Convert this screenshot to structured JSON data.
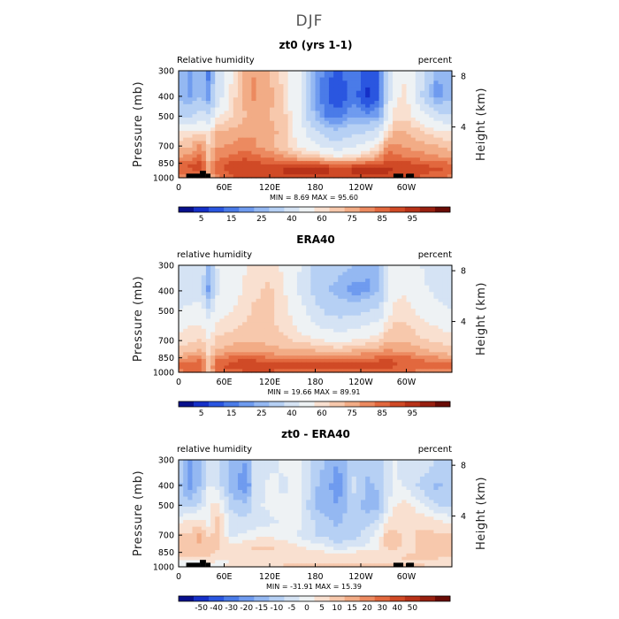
{
  "figure": {
    "title": "DJF"
  },
  "palettes": {
    "rh": [
      "#08108c",
      "#1530c8",
      "#2a56e0",
      "#4a7be8",
      "#6f9bef",
      "#94b8f2",
      "#b6d0f4",
      "#d5e3f4",
      "#eef2f4",
      "#f9e0d0",
      "#f7c8ac",
      "#f2ac86",
      "#ec8a60",
      "#e2683e",
      "#d04a26",
      "#b83218",
      "#982010",
      "#6a0c06"
    ],
    "diff": [
      "#08108c",
      "#1530c8",
      "#2a56e0",
      "#4a7be8",
      "#6f9bef",
      "#94b8f2",
      "#b6d0f4",
      "#d5e3f4",
      "#eef2f4",
      "#f9e0d0",
      "#f7c8ac",
      "#f2ac86",
      "#ec8a60",
      "#e2683e",
      "#d04a26",
      "#b83218",
      "#982010",
      "#6a0c06"
    ]
  },
  "chart_data": [
    {
      "type": "heatmap",
      "title": "zt0 (yrs 1-1)",
      "left_label": "Relative humidity",
      "right_label": "percent",
      "ylabel": "Pressure (mb)",
      "ylabel_right": "Height (km)",
      "x_ticks": [
        "0",
        "60E",
        "120E",
        "180",
        "120W",
        "60W"
      ],
      "x_tick_values": [
        0,
        60,
        120,
        180,
        240,
        300
      ],
      "xlim": [
        0,
        360
      ],
      "y_ticks": [
        "300",
        "400",
        "500",
        "700",
        "850",
        "1000"
      ],
      "y_tick_values": [
        300,
        400,
        500,
        700,
        850,
        1000
      ],
      "ylim": [
        300,
        1000
      ],
      "height_ticks": [
        "8",
        "4"
      ],
      "height_tick_values": [
        8,
        4
      ],
      "min_max": "MIN =    8.69   MAX =  95.60",
      "colorbar_labels": [
        "5",
        "15",
        "25",
        "40",
        "60",
        "75",
        "85",
        "95"
      ],
      "levels": [
        5,
        10,
        15,
        20,
        25,
        30,
        40,
        50,
        60,
        65,
        70,
        75,
        80,
        85,
        90,
        95
      ],
      "palette": "rh",
      "terrain": [
        [
          10,
          28,
          955
        ],
        [
          28,
          36,
          925
        ],
        [
          36,
          42,
          955
        ],
        [
          283,
          296,
          955
        ],
        [
          300,
          310,
          955
        ]
      ],
      "field": {
        "lons": [
          0,
          15,
          30,
          40,
          50,
          70,
          90,
          100,
          120,
          140,
          160,
          180,
          195,
          210,
          230,
          250,
          265,
          275,
          285,
          300,
          320,
          340,
          360
        ],
        "p": [
          300,
          400,
          500,
          600,
          700,
          800,
          850,
          900,
          950,
          1000
        ],
        "values": [
          [
            30,
            22,
            32,
            18,
            40,
            60,
            72,
            75,
            70,
            62,
            55,
            25,
            18,
            12,
            20,
            12,
            16,
            40,
            55,
            60,
            45,
            25,
            30
          ],
          [
            28,
            24,
            30,
            20,
            42,
            62,
            74,
            76,
            72,
            64,
            50,
            22,
            15,
            10,
            18,
            8,
            15,
            42,
            58,
            62,
            40,
            22,
            28
          ],
          [
            40,
            40,
            45,
            42,
            58,
            65,
            70,
            72,
            70,
            66,
            50,
            28,
            20,
            18,
            25,
            22,
            25,
            50,
            62,
            64,
            55,
            45,
            40
          ],
          [
            60,
            62,
            64,
            62,
            70,
            72,
            74,
            74,
            72,
            68,
            55,
            42,
            35,
            32,
            38,
            40,
            48,
            64,
            70,
            70,
            66,
            62,
            60
          ],
          [
            68,
            70,
            78,
            64,
            74,
            76,
            78,
            76,
            72,
            66,
            58,
            52,
            48,
            44,
            48,
            55,
            62,
            78,
            76,
            74,
            72,
            70,
            68
          ],
          [
            74,
            78,
            82,
            68,
            78,
            82,
            85,
            82,
            80,
            76,
            72,
            70,
            66,
            62,
            66,
            70,
            76,
            84,
            82,
            80,
            78,
            76,
            74
          ],
          [
            80,
            84,
            86,
            70,
            82,
            86,
            88,
            86,
            84,
            82,
            82,
            82,
            80,
            78,
            80,
            82,
            84,
            88,
            86,
            86,
            84,
            82,
            80
          ],
          [
            84,
            86,
            88,
            72,
            84,
            88,
            90,
            90,
            90,
            90,
            90,
            90,
            90,
            88,
            90,
            90,
            90,
            92,
            90,
            90,
            88,
            86,
            84
          ],
          [
            82,
            80,
            84,
            70,
            82,
            86,
            88,
            88,
            88,
            90,
            90,
            90,
            90,
            90,
            90,
            90,
            90,
            90,
            88,
            88,
            86,
            84,
            82
          ],
          [
            78,
            76,
            80,
            66,
            78,
            84,
            86,
            86,
            86,
            88,
            88,
            88,
            88,
            88,
            88,
            88,
            88,
            88,
            86,
            86,
            84,
            80,
            78
          ]
        ]
      }
    },
    {
      "type": "heatmap",
      "title": "ERA40",
      "left_label": "relative humidity",
      "right_label": "percent",
      "ylabel": "Pressure (mb)",
      "ylabel_right": "Height (km)",
      "x_ticks": [
        "0",
        "60E",
        "120E",
        "180",
        "120W",
        "60W"
      ],
      "x_tick_values": [
        0,
        60,
        120,
        180,
        240,
        300
      ],
      "xlim": [
        0,
        360
      ],
      "y_ticks": [
        "300",
        "400",
        "500",
        "700",
        "850",
        "1000"
      ],
      "y_tick_values": [
        300,
        400,
        500,
        700,
        850,
        1000
      ],
      "ylim": [
        300,
        1000
      ],
      "height_ticks": [
        "8",
        "4"
      ],
      "height_tick_values": [
        8,
        4
      ],
      "min_max": "MIN =   19.66   MAX =  89.91",
      "colorbar_labels": [
        "5",
        "15",
        "25",
        "40",
        "60",
        "75",
        "85",
        "95"
      ],
      "levels": [
        5,
        10,
        15,
        20,
        25,
        30,
        40,
        50,
        60,
        65,
        70,
        75,
        80,
        85,
        90,
        95
      ],
      "palette": "rh",
      "terrain": [],
      "field": {
        "lons": [
          0,
          15,
          30,
          40,
          50,
          70,
          90,
          100,
          120,
          140,
          160,
          180,
          195,
          210,
          230,
          250,
          265,
          275,
          285,
          300,
          320,
          340,
          360
        ],
        "p": [
          300,
          400,
          500,
          600,
          700,
          800,
          850,
          900,
          950,
          1000
        ],
        "values": [
          [
            40,
            42,
            48,
            25,
            50,
            55,
            60,
            64,
            64,
            58,
            50,
            38,
            34,
            32,
            30,
            26,
            30,
            48,
            56,
            58,
            50,
            45,
            40
          ],
          [
            44,
            46,
            45,
            22,
            48,
            56,
            62,
            64,
            66,
            60,
            48,
            36,
            30,
            28,
            22,
            24,
            32,
            50,
            58,
            60,
            52,
            48,
            44
          ],
          [
            50,
            52,
            54,
            42,
            56,
            60,
            64,
            66,
            66,
            62,
            54,
            44,
            38,
            36,
            36,
            40,
            42,
            56,
            62,
            62,
            58,
            54,
            50
          ],
          [
            58,
            60,
            62,
            55,
            62,
            64,
            66,
            68,
            66,
            64,
            58,
            52,
            48,
            46,
            48,
            52,
            56,
            64,
            66,
            66,
            62,
            60,
            58
          ],
          [
            62,
            64,
            66,
            60,
            66,
            68,
            70,
            70,
            68,
            66,
            64,
            62,
            60,
            58,
            60,
            62,
            64,
            70,
            70,
            70,
            66,
            64,
            62
          ],
          [
            68,
            70,
            72,
            62,
            72,
            74,
            76,
            76,
            74,
            72,
            72,
            72,
            70,
            70,
            72,
            74,
            76,
            78,
            76,
            76,
            72,
            70,
            68
          ],
          [
            74,
            76,
            78,
            64,
            78,
            82,
            84,
            82,
            80,
            80,
            80,
            80,
            80,
            78,
            80,
            80,
            82,
            84,
            82,
            82,
            78,
            76,
            74
          ],
          [
            80,
            82,
            84,
            66,
            82,
            86,
            88,
            88,
            88,
            88,
            88,
            86,
            86,
            86,
            86,
            86,
            88,
            88,
            86,
            84,
            82,
            80,
            80
          ],
          [
            82,
            84,
            84,
            68,
            84,
            86,
            88,
            88,
            88,
            86,
            86,
            86,
            86,
            86,
            86,
            86,
            86,
            86,
            84,
            84,
            82,
            82,
            82
          ],
          [
            78,
            80,
            80,
            66,
            80,
            82,
            84,
            84,
            84,
            82,
            82,
            82,
            82,
            82,
            82,
            82,
            82,
            82,
            80,
            80,
            78,
            78,
            78
          ]
        ]
      }
    },
    {
      "type": "heatmap",
      "title": "zt0 - ERA40",
      "left_label": "relative humidity",
      "right_label": "percent",
      "ylabel": "Pressure (mb)",
      "ylabel_right": "Height (km)",
      "x_ticks": [
        "0",
        "60E",
        "120E",
        "180",
        "120W",
        "60W"
      ],
      "x_tick_values": [
        0,
        60,
        120,
        180,
        240,
        300
      ],
      "xlim": [
        0,
        360
      ],
      "y_ticks": [
        "300",
        "400",
        "500",
        "700",
        "850",
        "1000"
      ],
      "y_tick_values": [
        300,
        400,
        500,
        700,
        850,
        1000
      ],
      "ylim": [
        300,
        1000
      ],
      "height_ticks": [
        "8",
        "4"
      ],
      "height_tick_values": [
        8,
        4
      ],
      "min_max": "MIN =  -31.91   MAX =  15.39",
      "colorbar_labels": [
        "-50",
        "-40",
        "-30",
        "-20",
        "-15",
        "-10",
        "-5",
        "0",
        "5",
        "10",
        "15",
        "20",
        "30",
        "40",
        "50"
      ],
      "levels": [
        -60,
        -50,
        -40,
        -30,
        -20,
        -15,
        -10,
        -5,
        0,
        5,
        10,
        15,
        20,
        30,
        40,
        50,
        60
      ],
      "palette": "diff",
      "terrain": [
        [
          10,
          28,
          955
        ],
        [
          28,
          36,
          925
        ],
        [
          36,
          42,
          955
        ],
        [
          283,
          296,
          955
        ],
        [
          300,
          310,
          955
        ]
      ],
      "field": {
        "lons": [
          0,
          15,
          30,
          40,
          50,
          70,
          90,
          100,
          120,
          140,
          160,
          180,
          195,
          210,
          230,
          250,
          265,
          275,
          285,
          300,
          320,
          340,
          360
        ],
        "p": [
          300,
          400,
          500,
          600,
          700,
          800,
          850,
          900,
          950,
          1000
        ],
        "values": [
          [
            -10,
            -20,
            -14,
            -6,
            -8,
            -16,
            -20,
            -8,
            -6,
            -4,
            -4,
            -12,
            -16,
            -20,
            -12,
            -14,
            -12,
            -8,
            -4,
            -8,
            -6,
            -10,
            -10
          ],
          [
            -14,
            -22,
            -14,
            -4,
            -6,
            -18,
            -26,
            -8,
            -4,
            -6,
            -2,
            -14,
            -18,
            -24,
            -8,
            -16,
            -14,
            -8,
            -4,
            -6,
            -12,
            -16,
            -14
          ],
          [
            -10,
            -12,
            -8,
            0,
            2,
            -12,
            -14,
            -6,
            -4,
            -4,
            -4,
            -16,
            -18,
            -20,
            -12,
            -18,
            -16,
            -6,
            0,
            2,
            -4,
            -10,
            -10
          ],
          [
            -2,
            2,
            2,
            -4,
            8,
            -8,
            -8,
            -8,
            -6,
            -4,
            -4,
            -10,
            -14,
            -16,
            -10,
            -12,
            -8,
            0,
            4,
            4,
            4,
            2,
            -2
          ],
          [
            6,
            6,
            12,
            4,
            8,
            -6,
            -4,
            -2,
            -2,
            -2,
            -6,
            -10,
            -12,
            -14,
            -12,
            -7,
            -2,
            8,
            6,
            4,
            6,
            6,
            6
          ],
          [
            6,
            8,
            10,
            6,
            6,
            2,
            4,
            6,
            6,
            4,
            0,
            -2,
            -4,
            -8,
            -6,
            -4,
            0,
            6,
            6,
            4,
            6,
            6,
            6
          ],
          [
            6,
            8,
            8,
            6,
            4,
            4,
            4,
            4,
            4,
            2,
            2,
            2,
            0,
            0,
            0,
            2,
            2,
            4,
            4,
            4,
            6,
            6,
            6
          ],
          [
            4,
            4,
            4,
            6,
            2,
            2,
            2,
            2,
            2,
            2,
            2,
            4,
            4,
            2,
            4,
            4,
            2,
            4,
            4,
            6,
            6,
            6,
            4
          ],
          [
            0,
            -4,
            0,
            2,
            -2,
            0,
            0,
            0,
            0,
            4,
            4,
            4,
            4,
            4,
            4,
            4,
            4,
            4,
            4,
            4,
            4,
            2,
            0
          ],
          [
            0,
            -4,
            0,
            0,
            -2,
            2,
            2,
            2,
            2,
            6,
            6,
            6,
            6,
            6,
            6,
            6,
            6,
            6,
            6,
            6,
            6,
            2,
            0
          ]
        ]
      }
    }
  ]
}
